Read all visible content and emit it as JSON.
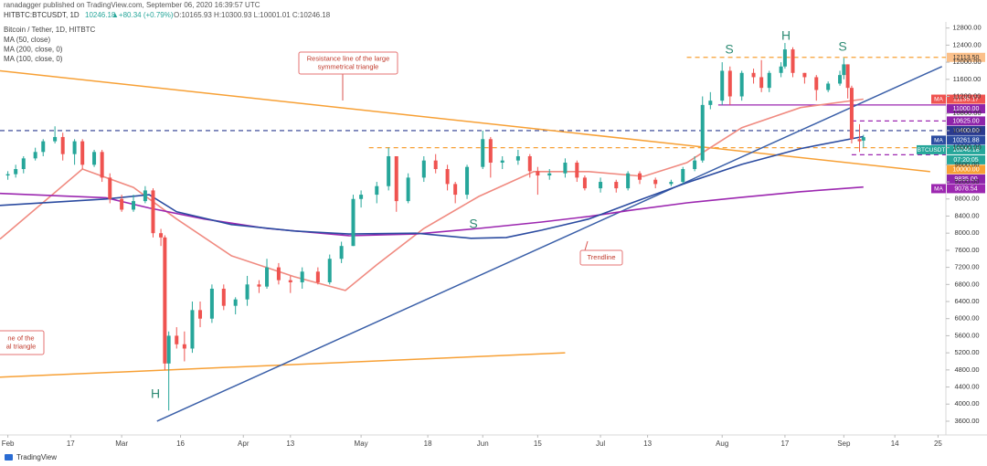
{
  "header": {
    "published": "ranadagger published on TradingView.com, September 06, 2020 16:39:57 UTC",
    "symbol": "HITBTC:BTCUSDT, 1D",
    "last": "10246.18",
    "change": "▲+80.34 (+0.79%)",
    "ohlc": "O:10165.93 H:10300.93 L:10001.01 C:10246.18"
  },
  "legend": {
    "title": "Bitcoin / Tether, 1D, HITBTC"
  },
  "footer": {
    "brand": "TradingView"
  },
  "chart_data": {
    "type": "candlestick",
    "up_color": "#26a69a",
    "down_color": "#ef5350",
    "candles": {
      "x": [
        "02-01",
        "02-03",
        "02-05",
        "02-08",
        "02-10",
        "02-13",
        "02-15",
        "02-18",
        "02-20",
        "02-23",
        "02-25",
        "02-27",
        "03-01",
        "03-04",
        "03-07",
        "03-09",
        "03-11",
        "03-12",
        "03-13",
        "03-15",
        "03-17",
        "03-19",
        "03-21",
        "03-24",
        "03-27",
        "03-30",
        "04-02",
        "04-05",
        "04-07",
        "04-10",
        "04-13",
        "04-16",
        "04-20",
        "04-23",
        "04-26",
        "04-29",
        "05-01",
        "05-05",
        "05-08",
        "05-10",
        "05-13",
        "05-17",
        "05-20",
        "05-23",
        "05-25",
        "05-28",
        "06-01",
        "06-03",
        "06-06",
        "06-10",
        "06-13",
        "06-15",
        "06-18",
        "06-22",
        "06-25",
        "06-27",
        "07-01",
        "07-05",
        "07-08",
        "07-11",
        "07-15",
        "07-19",
        "07-22",
        "07-25",
        "07-27",
        "07-29",
        "08-01",
        "08-03",
        "08-06",
        "08-09",
        "08-11",
        "08-13",
        "08-16",
        "08-17",
        "08-19",
        "08-22",
        "08-25",
        "08-28",
        "08-31",
        "09-01",
        "09-02",
        "09-03",
        "09-05",
        "09-06"
      ],
      "open": [
        9350,
        9380,
        9500,
        9750,
        9900,
        10150,
        10250,
        9850,
        10150,
        9600,
        9900,
        9300,
        8800,
        8550,
        8750,
        9000,
        8000,
        7900,
        4950,
        5600,
        5400,
        5300,
        6200,
        6000,
        6700,
        6300,
        6450,
        6800,
        6750,
        7200,
        6900,
        6850,
        7100,
        6850,
        7400,
        7700,
        8800,
        8900,
        9100,
        9800,
        8750,
        9300,
        9700,
        9500,
        9150,
        8900,
        9550,
        10200,
        9650,
        9700,
        9800,
        9450,
        9350,
        9400,
        9650,
        9300,
        9050,
        9200,
        9050,
        9400,
        9250,
        9150,
        9200,
        9500,
        9700,
        11000,
        11100,
        11800,
        11200,
        11750,
        11650,
        11400,
        11750,
        11900,
        12300,
        11750,
        11650,
        11350,
        11500,
        11700,
        11950,
        11400,
        10200,
        10165.93
      ],
      "high": [
        9450,
        9600,
        9800,
        10000,
        10200,
        10500,
        10350,
        10200,
        10200,
        9950,
        9950,
        9400,
        8900,
        8900,
        9100,
        9050,
        8100,
        7950,
        5700,
        5800,
        5700,
        6400,
        6400,
        6800,
        6800,
        6500,
        7000,
        6900,
        7400,
        7300,
        7000,
        7200,
        7200,
        7500,
        7800,
        8900,
        9000,
        9200,
        10000,
        9800,
        9400,
        9800,
        9850,
        9600,
        9200,
        9600,
        10400,
        10250,
        9800,
        9950,
        9850,
        9550,
        9500,
        9750,
        9700,
        9350,
        9300,
        9250,
        9450,
        9450,
        9300,
        9250,
        9550,
        9800,
        11200,
        11300,
        12000,
        11900,
        11800,
        11850,
        12050,
        11800,
        12000,
        12450,
        12350,
        11750,
        11700,
        11550,
        11800,
        12100,
        11950,
        11450,
        10550,
        10300.93
      ],
      "low": [
        9250,
        9300,
        9400,
        9700,
        9800,
        10100,
        9700,
        9600,
        9500,
        9550,
        9200,
        8700,
        8500,
        8500,
        8700,
        7900,
        7700,
        4800,
        3850,
        5300,
        5000,
        5200,
        5800,
        5900,
        6200,
        6100,
        6300,
        6600,
        6700,
        6800,
        6600,
        6700,
        6800,
        6800,
        7300,
        7700,
        8600,
        8700,
        9000,
        8500,
        8700,
        9200,
        9400,
        9000,
        8700,
        8800,
        9500,
        9300,
        9500,
        9600,
        9300,
        8900,
        9250,
        9300,
        9200,
        9000,
        8950,
        8950,
        9000,
        9150,
        9050,
        9100,
        9150,
        9450,
        9650,
        10900,
        11000,
        11000,
        11100,
        11500,
        11300,
        11300,
        11650,
        11850,
        11650,
        11500,
        11100,
        11300,
        11450,
        11600,
        11150,
        10100,
        9900,
        10001.01
      ],
      "close": [
        9380,
        9500,
        9750,
        9900,
        10150,
        10250,
        9850,
        10150,
        9600,
        9900,
        9300,
        8800,
        8550,
        8750,
        9000,
        8000,
        7900,
        4950,
        5600,
        5400,
        5300,
        6200,
        6000,
        6700,
        6300,
        6450,
        6800,
        6750,
        7200,
        6900,
        6850,
        7100,
        6850,
        7400,
        7700,
        8800,
        8900,
        9100,
        9800,
        8750,
        9300,
        9700,
        9500,
        9150,
        8900,
        9550,
        10200,
        9650,
        9700,
        9800,
        9450,
        9350,
        9400,
        9650,
        9300,
        9050,
        9200,
        9050,
        9400,
        9250,
        9150,
        9200,
        9500,
        9700,
        11000,
        11100,
        11800,
        11200,
        11750,
        11650,
        11400,
        11750,
        11900,
        12300,
        11750,
        11650,
        11350,
        11500,
        11700,
        11950,
        11400,
        10200,
        10150,
        10246.18
      ]
    },
    "series": [
      {
        "name": "MA (50, close)",
        "color": "#f08a80",
        "x": [
          "01-30",
          "02-20",
          "03-04",
          "03-15",
          "03-29",
          "04-14",
          "04-27",
          "05-05",
          "05-17",
          "05-31",
          "06-14",
          "06-28",
          "07-12",
          "07-23",
          "08-06",
          "08-21",
          "09-06"
        ],
        "values": [
          7860,
          9500,
          9070,
          8330,
          7470,
          6980,
          6660,
          7260,
          8110,
          8860,
          9440,
          9440,
          9330,
          9650,
          10470,
          10940,
          11135.17
        ]
      },
      {
        "name": "MA (200, close, 0)",
        "color": "#9c27b0",
        "x": [
          "01-30",
          "02-26",
          "03-08",
          "03-22",
          "04-07",
          "04-28",
          "05-15",
          "05-31",
          "06-16",
          "06-28",
          "07-09",
          "07-23",
          "08-06",
          "08-21",
          "09-06"
        ],
        "values": [
          8930,
          8830,
          8590,
          8330,
          8110,
          7940,
          7980,
          8110,
          8260,
          8390,
          8540,
          8710,
          8840,
          8970,
          9078.54
        ]
      },
      {
        "name": "MA (100, close, 0)",
        "color": "#2b4ba0",
        "x": [
          "01-30",
          "02-26",
          "03-08",
          "03-15",
          "03-29",
          "04-14",
          "04-28",
          "05-15",
          "05-29",
          "06-07",
          "06-16",
          "06-28",
          "07-09",
          "07-23",
          "08-06",
          "08-21",
          "09-06"
        ],
        "values": [
          8650,
          8800,
          8900,
          8500,
          8200,
          8050,
          7980,
          8000,
          7880,
          7900,
          8070,
          8330,
          8710,
          9180,
          9610,
          9980,
          10261.88
        ]
      }
    ],
    "lines": [
      {
        "x": [
          "01-30",
          "09-23"
        ],
        "values": [
          11800,
          9440
        ],
        "color": "#f7a035"
      },
      {
        "x": [
          "01-30",
          "06-22"
        ],
        "values": [
          4630,
          5200
        ],
        "color": "#f7a035"
      },
      {
        "x": [
          "03-10",
          "09-26"
        ],
        "values": [
          3600,
          11900
        ],
        "color": "#3a5fa8"
      }
    ],
    "levels": [
      {
        "value": 12113.5,
        "from": "07-23",
        "color": "#f7a035",
        "dash": true
      },
      {
        "value": 11000,
        "from": "07-31",
        "color": "#9c27b0",
        "dash": false
      },
      {
        "value": 10625,
        "from": "09-03",
        "color": "#9c27b0",
        "dash": true
      },
      {
        "value": 10400,
        "from": "01-30",
        "color": "#2a3a8f",
        "dash": true
      },
      {
        "value": 10000,
        "from": "05-03",
        "color": "#f7a035",
        "dash": true
      },
      {
        "value": 9835,
        "from": "09-03",
        "color": "#9c27b0",
        "dash": true
      }
    ],
    "price_tags": [
      {
        "value": 12113.5,
        "label": "12113.50",
        "color": "#fbc08a"
      },
      {
        "value": 11135.17,
        "prefix": "MA",
        "label": "11135.17",
        "color": "#ef5350"
      },
      {
        "value": 11000,
        "label": "11000.00",
        "color": "#8e24aa"
      },
      {
        "value": 10625,
        "label": "10625.00",
        "color": "#8e24aa"
      },
      {
        "value": 10400,
        "label": "10400.00",
        "color": "#2a3a8f"
      },
      {
        "value": 10261.88,
        "prefix": "MA",
        "label": "10261.88",
        "color": "#2b4ba0"
      },
      {
        "value": 10246.18,
        "prefix": "BTCUSDT",
        "label": "10246.18",
        "sub": "07:20:05",
        "color": "#26a69a"
      },
      {
        "value": 10000,
        "label": "10000.00",
        "color": "#f7a035"
      },
      {
        "value": 9835,
        "label": "9835.00",
        "color": "#8e24aa"
      },
      {
        "value": 9078.54,
        "prefix": "MA",
        "label": "9078.54",
        "color": "#9c27b0"
      }
    ],
    "annotations": [
      {
        "lines": [
          "Resistance line of the large",
          "symmetrical triangle"
        ]
      },
      {
        "lines": [
          "Trendline"
        ]
      },
      {
        "lines": [
          "ne of the",
          "al triangle"
        ]
      }
    ],
    "pattern_labels": [
      "S",
      "H",
      "S",
      "S",
      "H"
    ],
    "xlim": [
      "01-30",
      "09-27"
    ],
    "xticks": [
      {
        "value": "02-01",
        "label": "Feb"
      },
      {
        "value": "02-17",
        "label": "17"
      },
      {
        "value": "03-01",
        "label": "Mar"
      },
      {
        "value": "03-16",
        "label": "16"
      },
      {
        "value": "04-01",
        "label": "Apr"
      },
      {
        "value": "04-13",
        "label": "13"
      },
      {
        "value": "05-01",
        "label": "May"
      },
      {
        "value": "05-18",
        "label": "18"
      },
      {
        "value": "06-01",
        "label": "Jun"
      },
      {
        "value": "06-15",
        "label": "15"
      },
      {
        "value": "07-01",
        "label": "Jul"
      },
      {
        "value": "07-13",
        "label": "13"
      },
      {
        "value": "08-01",
        "label": "Aug"
      },
      {
        "value": "08-17",
        "label": "17"
      },
      {
        "value": "09-01",
        "label": "Sep"
      },
      {
        "value": "09-14",
        "label": "14"
      },
      {
        "value": "09-25",
        "label": "25"
      }
    ],
    "ylim": [
      3300,
      12900
    ],
    "yticks": [
      {
        "value": 3600,
        "label": "3600.00"
      },
      {
        "value": 4000,
        "label": "4000.00"
      },
      {
        "value": 4400,
        "label": "4400.00"
      },
      {
        "value": 4800,
        "label": "4800.00"
      },
      {
        "value": 5200,
        "label": "5200.00"
      },
      {
        "value": 5600,
        "label": "5600.00"
      },
      {
        "value": 6000,
        "label": "6000.00"
      },
      {
        "value": 6400,
        "label": "6400.00"
      },
      {
        "value": 6800,
        "label": "6800.00"
      },
      {
        "value": 7200,
        "label": "7200.00"
      },
      {
        "value": 7600,
        "label": "7600.00"
      },
      {
        "value": 8000,
        "label": "8000.00"
      },
      {
        "value": 8400,
        "label": "8400.00"
      },
      {
        "value": 8800,
        "label": "8800.00"
      },
      {
        "value": 9200,
        "label": "9200.00"
      },
      {
        "value": 9600,
        "label": "9600.00"
      },
      {
        "value": 10000,
        "label": "10000.00"
      },
      {
        "value": 10400,
        "label": "10400.00"
      },
      {
        "value": 10800,
        "label": "10800.00"
      },
      {
        "value": 11200,
        "label": "11200.00"
      },
      {
        "value": 11600,
        "label": "11600.00"
      },
      {
        "value": 12000,
        "label": "12000.00"
      },
      {
        "value": 12400,
        "label": "12400.00"
      },
      {
        "value": 12800,
        "label": "12800.00"
      }
    ],
    "grid": false
  }
}
